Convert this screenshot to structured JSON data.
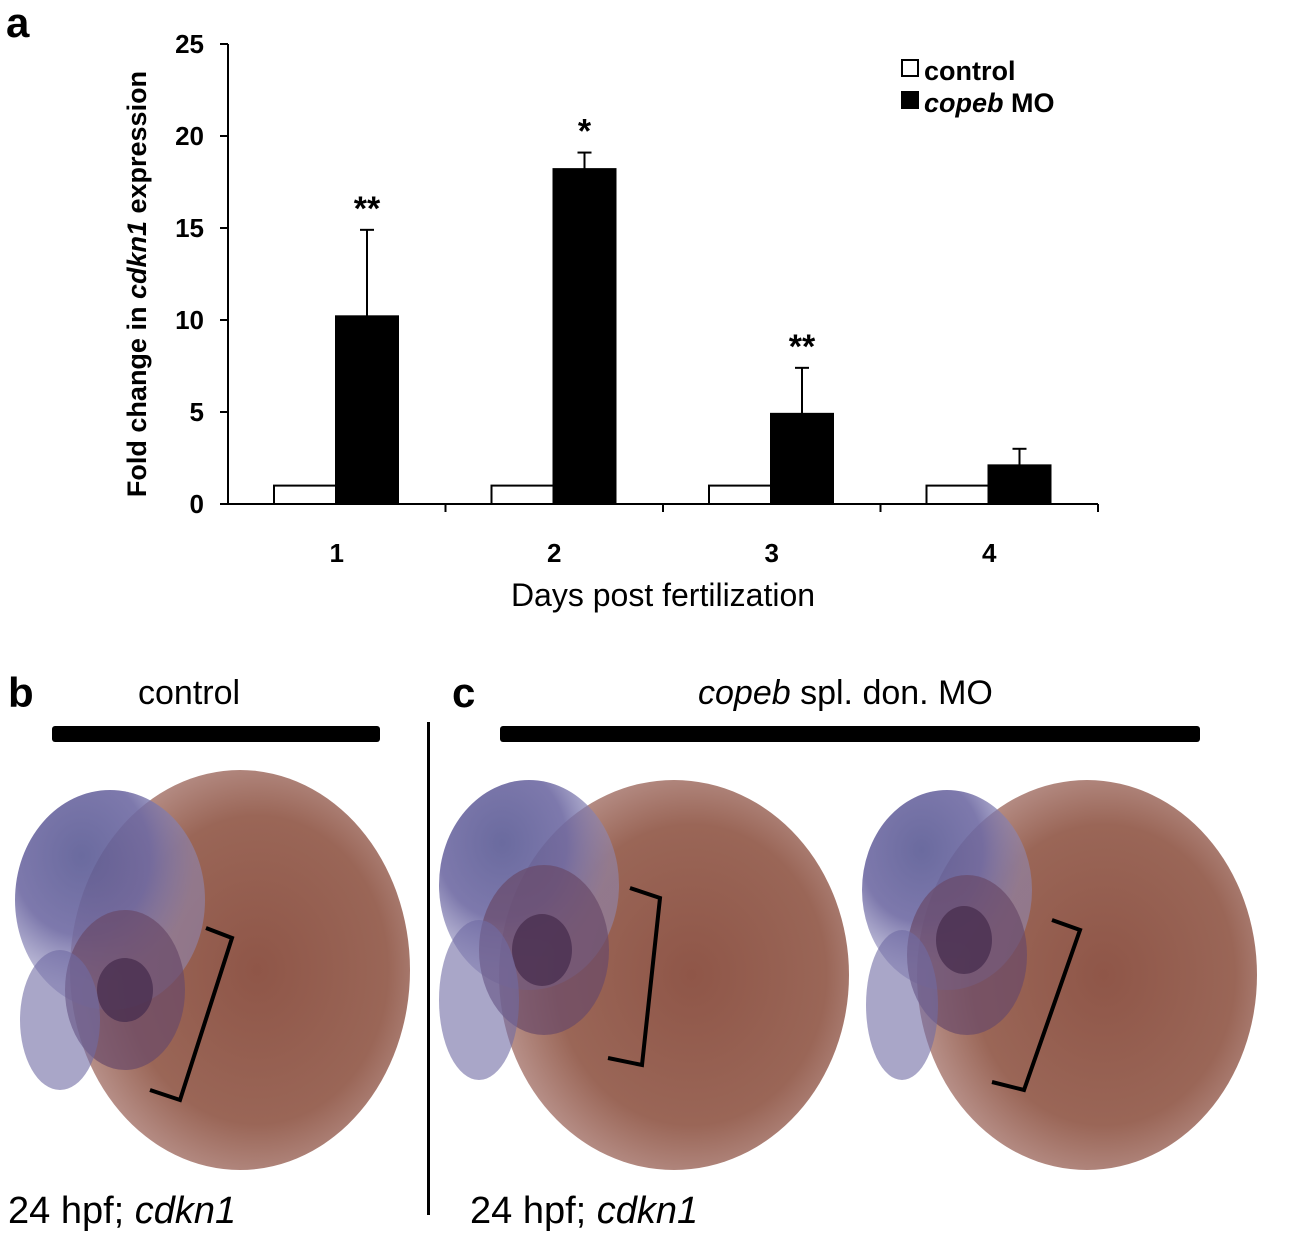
{
  "panels": {
    "a": {
      "letter": "a"
    },
    "b": {
      "letter": "b",
      "title": "control",
      "caption_prefix": "24 hpf; ",
      "caption_gene": "cdkn1"
    },
    "c": {
      "letter": "c",
      "title_gene": "copeb",
      "title_rest": " spl. don. MO",
      "caption_prefix": "24 hpf; ",
      "caption_gene": "cdkn1"
    }
  },
  "chart_data": {
    "type": "bar",
    "xlabel": "Days post fertilization",
    "ylabel_parts": [
      "Fold change in ",
      "cdkn1",
      " expression"
    ],
    "categories": [
      "1",
      "2",
      "3",
      "4"
    ],
    "ylim": [
      0,
      25
    ],
    "yticks": [
      0,
      5,
      10,
      15,
      20,
      25
    ],
    "grid": false,
    "legend_position": "top-right",
    "series": [
      {
        "name": "control",
        "color": "#ffffff",
        "values": [
          1,
          1,
          1,
          1
        ],
        "errors": [
          0,
          0,
          0,
          0
        ]
      },
      {
        "name": "copeb MO",
        "name_gene": "copeb",
        "name_rest": " MO",
        "color": "#000000",
        "values": [
          10.2,
          18.2,
          4.9,
          2.1
        ],
        "errors": [
          4.7,
          0.9,
          2.5,
          0.9
        ]
      }
    ],
    "annotations": [
      "**",
      "*",
      "**",
      ""
    ]
  },
  "images": [
    {
      "label": "control embryo head, cdkn1 in situ"
    },
    {
      "label": "copeb MO embryo head 1, cdkn1 in situ"
    },
    {
      "label": "copeb MO embryo head 2, cdkn1 in situ"
    }
  ]
}
